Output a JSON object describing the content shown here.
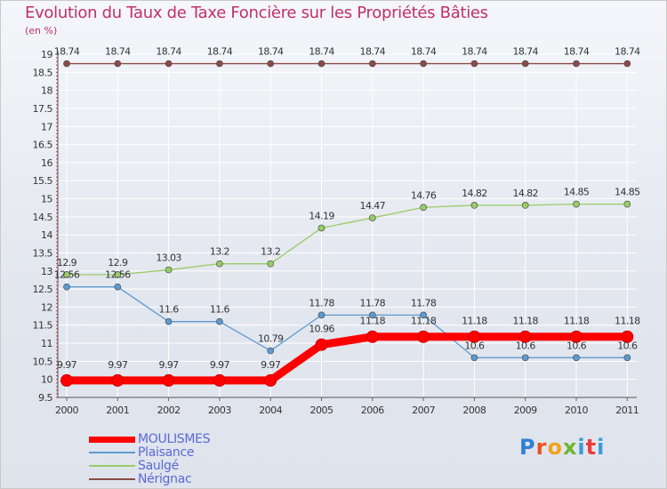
{
  "chart_data": {
    "type": "line",
    "title": "Evolution du Taux de Taxe Foncière sur les Propriétés Bâties",
    "ylabel": "(en %)",
    "xlabel": "",
    "ylim": [
      9.5,
      19
    ],
    "y_ticks": [
      "9.5",
      "10",
      "10.5",
      "11",
      "11.5",
      "12",
      "12.5",
      "13",
      "13.5",
      "14",
      "14.5",
      "15",
      "15.5",
      "16",
      "16.5",
      "17",
      "17.5",
      "18",
      "18.5",
      "19"
    ],
    "categories": [
      "2000",
      "2001",
      "2002",
      "2003",
      "2004",
      "2005",
      "2006",
      "2007",
      "2008",
      "2009",
      "2010",
      "2011"
    ],
    "grid": true,
    "legend_position": "bottom-left",
    "series": [
      {
        "name": "MOULISMES",
        "color": "#ff0000",
        "values": [
          9.97,
          9.97,
          9.97,
          9.97,
          9.97,
          10.96,
          11.18,
          11.18,
          11.18,
          11.18,
          11.18,
          11.18
        ],
        "labels": [
          "9.97",
          "9.97",
          "9.97",
          "9.97",
          "9.97",
          "10.96",
          "11.18",
          "11.18",
          "11.18",
          "11.18",
          "11.18",
          "11.18"
        ]
      },
      {
        "name": "Plaisance",
        "color": "#5d9bd1",
        "values": [
          12.56,
          12.56,
          11.6,
          11.6,
          10.79,
          11.78,
          11.78,
          11.78,
          10.6,
          10.6,
          10.6,
          10.6
        ],
        "labels": [
          "12.56",
          "12.56",
          "11.6",
          "11.6",
          "10.79",
          "11.78",
          "11.78",
          "11.78",
          "10.6",
          "10.6",
          "10.6",
          "10.6"
        ]
      },
      {
        "name": "Saulgé",
        "color": "#99cc66",
        "values": [
          12.9,
          12.9,
          13.03,
          13.2,
          13.2,
          14.19,
          14.47,
          14.76,
          14.82,
          14.82,
          14.85,
          14.85
        ],
        "labels": [
          "12.9",
          "12.9",
          "13.03",
          "13.2",
          "13.2",
          "14.19",
          "14.47",
          "14.76",
          "14.82",
          "14.82",
          "14.85",
          "14.85"
        ]
      },
      {
        "name": "Nérignac",
        "color": "#8b4a4a",
        "values": [
          18.74,
          18.74,
          18.74,
          18.74,
          18.74,
          18.74,
          18.74,
          18.74,
          18.74,
          18.74,
          18.74,
          18.74
        ],
        "labels": [
          "18.74",
          "18.74",
          "18.74",
          "18.74",
          "18.74",
          "18.74",
          "18.74",
          "18.74",
          "18.74",
          "18.74",
          "18.74",
          "18.74"
        ]
      }
    ]
  },
  "logo": {
    "p": "P",
    "r": "r",
    "o": "o",
    "x": "x",
    "i": "i",
    "t": "t",
    "i2": "i"
  }
}
